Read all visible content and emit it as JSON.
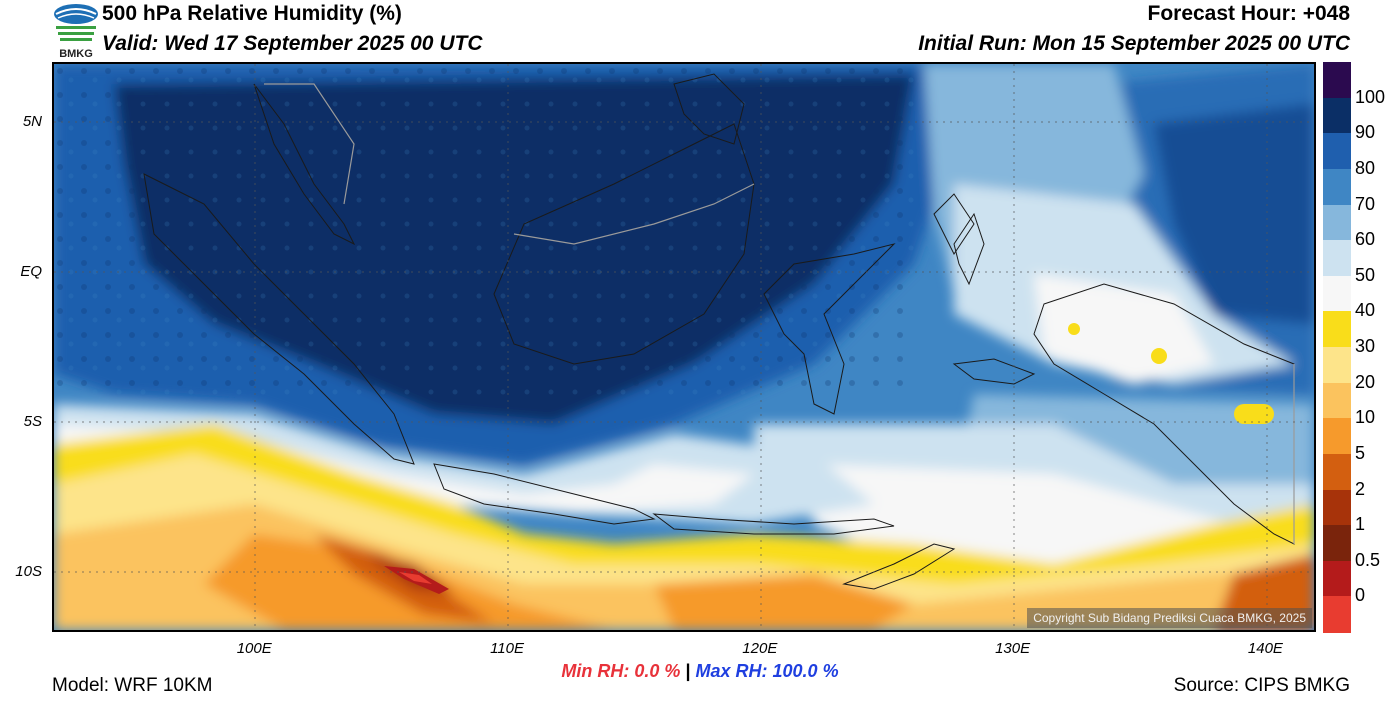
{
  "header": {
    "title": "500 hPa Relative Humidity (%)",
    "valid": "Valid: Wed 17 September 2025 00 UTC",
    "forecast_hour": "Forecast Hour: +048",
    "initial_run": "Initial Run: Mon 15 September 2025 00 UTC",
    "logo_text": "BMKG"
  },
  "map": {
    "lat_labels": [
      {
        "text": "5N",
        "lat": 5
      },
      {
        "text": "EQ",
        "lat": 0
      },
      {
        "text": "5S",
        "lat": -5
      },
      {
        "text": "10S",
        "lat": -10
      }
    ],
    "lon_labels": [
      {
        "text": "100E",
        "lon": 100
      },
      {
        "text": "110E",
        "lon": 110
      },
      {
        "text": "120E",
        "lon": 120
      },
      {
        "text": "130E",
        "lon": 130
      },
      {
        "text": "140E",
        "lon": 140
      }
    ],
    "lon_range": [
      92,
      142
    ],
    "lat_range": [
      -12,
      7
    ],
    "gridlines": "dotted",
    "copyright": "Copyright Sub Bidang Prediksi Cuaca BMKG, 2025"
  },
  "colorbar": {
    "labels": [
      "100",
      "90",
      "80",
      "70",
      "60",
      "50",
      "40",
      "30",
      "20",
      "10",
      "5",
      "2",
      "1",
      "0.5",
      "0"
    ],
    "colors": [
      "#2b0a4f",
      "#0b2f66",
      "#1f5fae",
      "#3f86c4",
      "#86b7dc",
      "#cde2f0",
      "#f7f7f7",
      "#f9dd1a",
      "#fde48a",
      "#fbc35e",
      "#f69a2c",
      "#d35f10",
      "#a7330a",
      "#7a240c",
      "#b41b1b",
      "#e83c30"
    ]
  },
  "footer": {
    "min_rh": "Min RH:   0.0 %",
    "separator": "|",
    "max_rh": "Max RH: 100.0 %",
    "model": "Model: WRF 10KM",
    "source": "Source: CIPS BMKG"
  }
}
